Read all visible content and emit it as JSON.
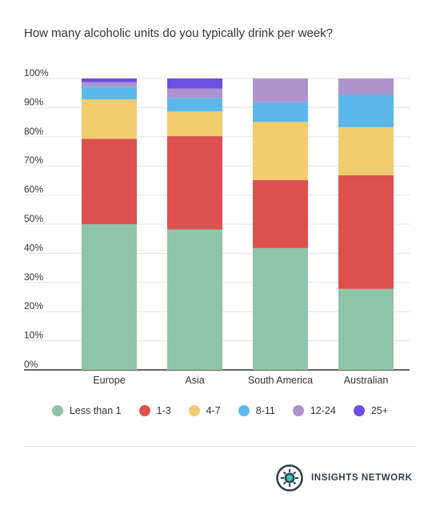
{
  "title": "How many alcoholic units do you typically drink per week?",
  "chart_data": {
    "type": "bar",
    "stacked": true,
    "categories": [
      "Europe",
      "Asia",
      "South America",
      "Australian"
    ],
    "series": [
      {
        "name": "Less than 1",
        "color": "#8ec4a7",
        "values": [
          50,
          48.2,
          41.8,
          27.8
        ]
      },
      {
        "name": "1-3",
        "color": "#dc5050",
        "values": [
          29.3,
          32.0,
          23.3,
          39.0
        ]
      },
      {
        "name": "4-7",
        "color": "#f0cc6c",
        "values": [
          13.5,
          8.5,
          20.0,
          16.5
        ]
      },
      {
        "name": "8-11",
        "color": "#5bb8eb",
        "values": [
          4.4,
          4.6,
          6.7,
          11.2
        ]
      },
      {
        "name": "12-24",
        "color": "#ad94cb",
        "values": [
          1.5,
          3.2,
          8.2,
          5.5
        ]
      },
      {
        "name": "25+",
        "color": "#6f4fe0",
        "values": [
          1.3,
          3.5,
          0,
          0
        ]
      }
    ],
    "yticks": [
      "0%",
      "10%",
      "20%",
      "30%",
      "40%",
      "50%",
      "60%",
      "70%",
      "80%",
      "90%",
      "100%"
    ],
    "ylim": [
      0,
      100
    ],
    "grid": true,
    "legend": "bottom"
  },
  "brand": {
    "name": "INSIGHTS NETWORK",
    "icon": "insights-network-logo-icon"
  }
}
